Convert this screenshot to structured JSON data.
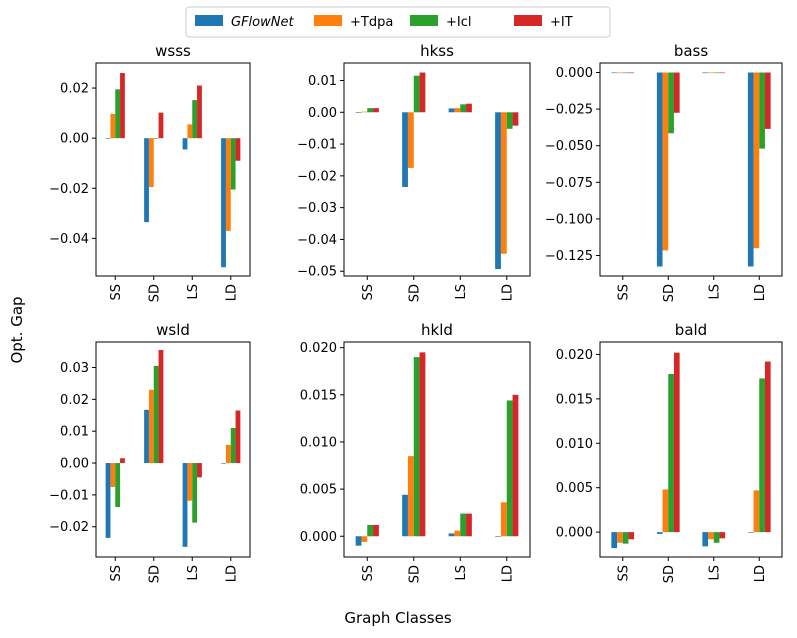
{
  "figure": {
    "ylabel": "Opt. Gap",
    "xlabel": "Graph Classes"
  },
  "legend": [
    {
      "name": "GFlowNet",
      "color": "#1f77b4",
      "italic": true
    },
    {
      "name": "+Tdpa",
      "color": "#ff7f0e",
      "italic": false
    },
    {
      "name": "+Icl",
      "color": "#2ca02c",
      "italic": false
    },
    {
      "name": "+IT",
      "color": "#d62728",
      "italic": false
    }
  ],
  "chart_data": [
    {
      "type": "bar",
      "title": "wsss",
      "categories": [
        "SS",
        "SD",
        "LS",
        "LD"
      ],
      "ylim": [
        -0.055,
        0.03
      ],
      "ticks": [
        0.02,
        0.0,
        -0.02,
        -0.04
      ],
      "tick_labels": [
        "0.02",
        "0.00",
        "−0.02",
        "−0.04"
      ],
      "series": [
        {
          "name": "GFlowNet",
          "values": [
            0.0,
            -0.0335,
            -0.0045,
            -0.0515
          ]
        },
        {
          "name": "+Tdpa",
          "values": [
            0.0097,
            -0.0195,
            0.0055,
            -0.037
          ]
        },
        {
          "name": "+Icl",
          "values": [
            0.0195,
            0.0,
            0.0152,
            -0.0205
          ]
        },
        {
          "name": "+IT",
          "values": [
            0.026,
            0.0102,
            0.021,
            -0.009
          ]
        }
      ]
    },
    {
      "type": "bar",
      "title": "hkss",
      "categories": [
        "SS",
        "SD",
        "LS",
        "LD"
      ],
      "ylim": [
        -0.0515,
        0.0155
      ],
      "ticks": [
        0.01,
        0.0,
        -0.01,
        -0.02,
        -0.03,
        -0.04,
        -0.05
      ],
      "tick_labels": [
        "0.01",
        "0.00",
        "−0.01",
        "−0.02",
        "−0.03",
        "−0.04",
        "−0.05"
      ],
      "series": [
        {
          "name": "GFlowNet",
          "values": [
            0.0,
            -0.0235,
            0.0012,
            -0.0493
          ]
        },
        {
          "name": "+Tdpa",
          "values": [
            0.0002,
            -0.0175,
            0.0013,
            -0.0445
          ]
        },
        {
          "name": "+Icl",
          "values": [
            0.0013,
            0.0115,
            0.0025,
            -0.0052
          ]
        },
        {
          "name": "+IT",
          "values": [
            0.0013,
            0.0125,
            0.0027,
            -0.0042
          ]
        }
      ]
    },
    {
      "type": "bar",
      "title": "bass",
      "categories": [
        "SS",
        "SD",
        "LS",
        "LD"
      ],
      "ylim": [
        -0.139,
        0.0065
      ],
      "ticks": [
        0.0,
        -0.025,
        -0.05,
        -0.075,
        -0.1,
        -0.125
      ],
      "tick_labels": [
        "0.000",
        "−0.025",
        "−0.050",
        "−0.075",
        "−0.100",
        "−0.125"
      ],
      "series": [
        {
          "name": "GFlowNet",
          "values": [
            -0.0002,
            -0.1325,
            -0.0002,
            -0.1325
          ]
        },
        {
          "name": "+Tdpa",
          "values": [
            -0.0002,
            -0.1215,
            -0.0002,
            -0.12
          ]
        },
        {
          "name": "+Icl",
          "values": [
            -0.0002,
            -0.0415,
            -0.0002,
            -0.052
          ]
        },
        {
          "name": "+IT",
          "values": [
            -0.0002,
            -0.0275,
            -0.0002,
            -0.0385
          ]
        }
      ]
    },
    {
      "type": "bar",
      "title": "wsld",
      "categories": [
        "SS",
        "SD",
        "LS",
        "LD"
      ],
      "ylim": [
        -0.0295,
        0.038
      ],
      "ticks": [
        0.03,
        0.02,
        0.01,
        0.0,
        -0.01,
        -0.02
      ],
      "tick_labels": [
        "0.03",
        "0.02",
        "0.01",
        "0.00",
        "−0.01",
        "−0.02"
      ],
      "series": [
        {
          "name": "GFlowNet",
          "values": [
            -0.0235,
            0.0167,
            -0.0263,
            0.0
          ]
        },
        {
          "name": "+Tdpa",
          "values": [
            -0.0075,
            0.023,
            -0.0118,
            0.0057
          ]
        },
        {
          "name": "+Icl",
          "values": [
            -0.0138,
            0.0305,
            -0.0187,
            0.011
          ]
        },
        {
          "name": "+IT",
          "values": [
            0.0015,
            0.0355,
            -0.0045,
            0.0165
          ]
        }
      ]
    },
    {
      "type": "bar",
      "title": "hkld",
      "categories": [
        "SS",
        "SD",
        "LS",
        "LD"
      ],
      "ylim": [
        -0.0022,
        0.0206
      ],
      "ticks": [
        0.02,
        0.015,
        0.01,
        0.005,
        0.0
      ],
      "tick_labels": [
        "0.020",
        "0.015",
        "0.010",
        "0.005",
        "0.000"
      ],
      "series": [
        {
          "name": "GFlowNet",
          "values": [
            -0.001,
            0.0044,
            0.0003,
            0.0
          ]
        },
        {
          "name": "+Tdpa",
          "values": [
            -0.0006,
            0.0085,
            0.0006,
            0.0036
          ]
        },
        {
          "name": "+Icl",
          "values": [
            0.0012,
            0.019,
            0.0024,
            0.0144
          ]
        },
        {
          "name": "+IT",
          "values": [
            0.0012,
            0.0195,
            0.0024,
            0.015
          ]
        }
      ]
    },
    {
      "type": "bar",
      "title": "bald",
      "categories": [
        "SS",
        "SD",
        "LS",
        "LD"
      ],
      "ylim": [
        -0.0028,
        0.0214
      ],
      "ticks": [
        0.02,
        0.015,
        0.01,
        0.005,
        0.0
      ],
      "tick_labels": [
        "0.020",
        "0.015",
        "0.010",
        "0.005",
        "0.000"
      ],
      "series": [
        {
          "name": "GFlowNet",
          "values": [
            -0.0018,
            -0.0002,
            -0.0016,
            0.0
          ]
        },
        {
          "name": "+Tdpa",
          "values": [
            -0.0012,
            0.0048,
            -0.0008,
            0.0047
          ]
        },
        {
          "name": "+Icl",
          "values": [
            -0.0013,
            0.0178,
            -0.0012,
            0.0173
          ]
        },
        {
          "name": "+IT",
          "values": [
            -0.0008,
            0.0202,
            -0.0007,
            0.0192
          ]
        }
      ]
    }
  ]
}
